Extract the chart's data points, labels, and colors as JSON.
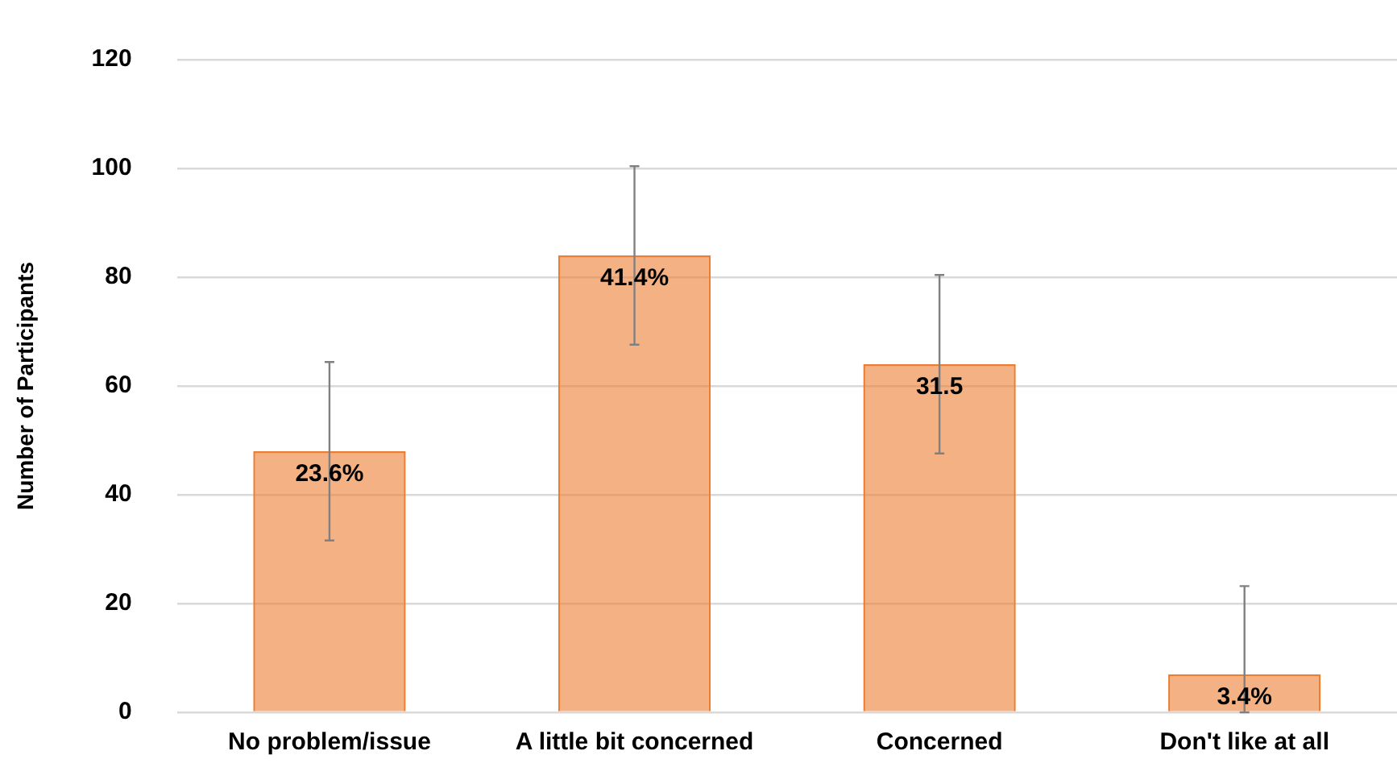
{
  "chart_data": {
    "type": "bar",
    "ylabel": "Number of Participants",
    "categories": [
      "No problem/issue",
      "A little bit concerned",
      "Concerned",
      "Don't like at all"
    ],
    "values": [
      48,
      84,
      64,
      7
    ],
    "errors": [
      16.4,
      16.4,
      16.4,
      [
        0,
        23.2
      ]
    ],
    "annotations": [
      {
        "text": "23.6%",
        "x": "No problem/issue",
        "y": 48
      },
      {
        "text": "41.4%",
        "x": "A little bit concerned",
        "y": 84
      },
      {
        "text": "31.5",
        "x": "Concerned",
        "y": 64
      },
      {
        "text": "3.4%",
        "x": "Don't like at all",
        "y": 7
      }
    ],
    "color": "#ed7d31",
    "ylim": [
      0,
      120
    ],
    "yticks": [
      0,
      20,
      40,
      60,
      80,
      100,
      120
    ],
    "grid": "y",
    "legend": false
  }
}
